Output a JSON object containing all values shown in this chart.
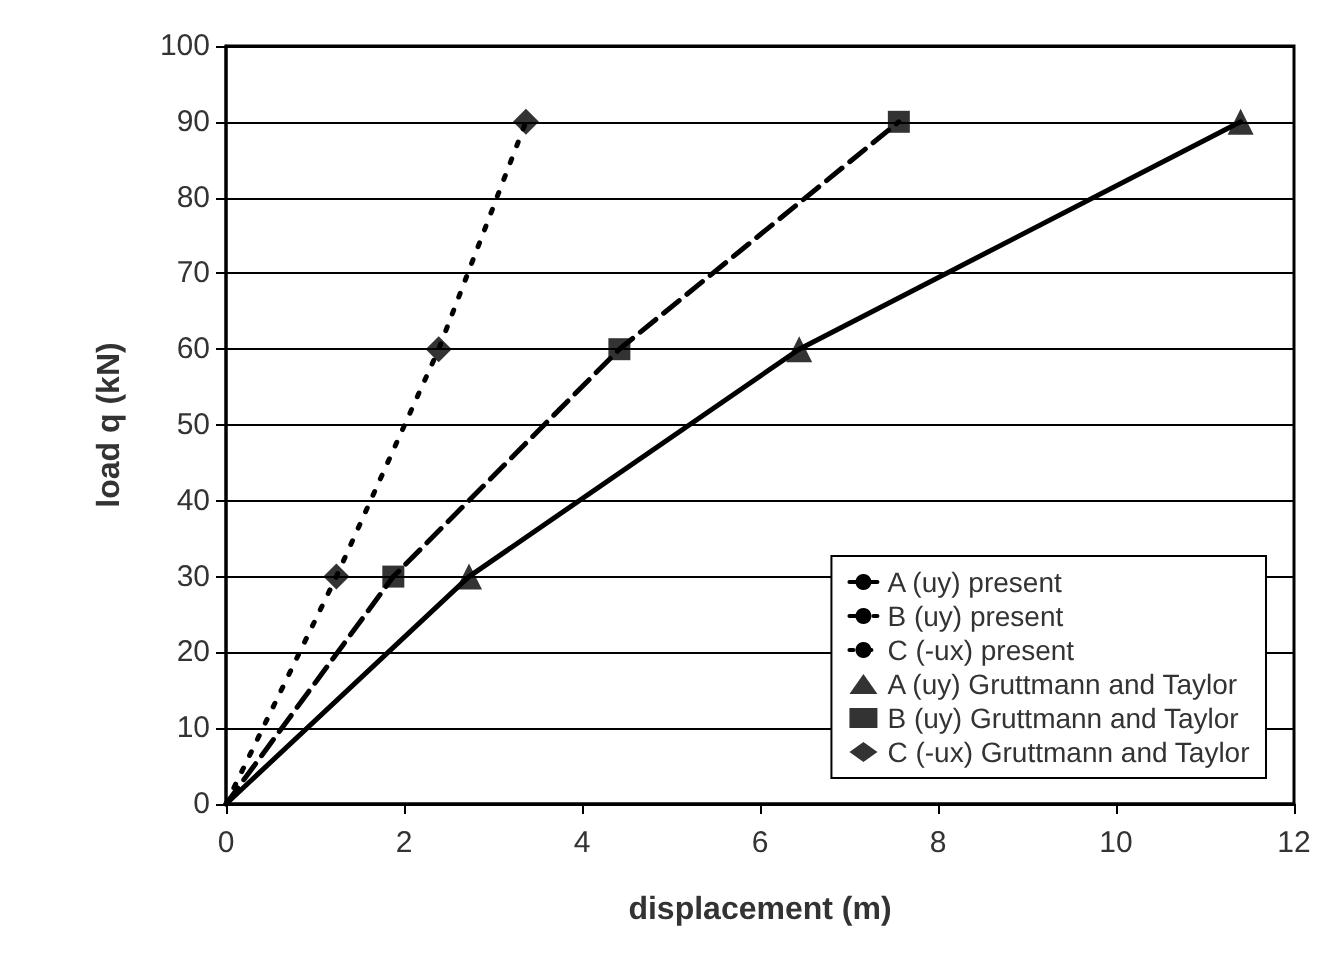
{
  "chart_data": {
    "type": "line",
    "xlabel": "displacement (m)",
    "ylabel": "load q (kN)",
    "series": [
      {
        "name": "A (uy) present",
        "color": "#000000",
        "line_style": "solid",
        "marker": "none",
        "x": [
          0,
          2.73,
          6.44,
          11.4
        ],
        "values": [
          0,
          30,
          60,
          90
        ]
      },
      {
        "name": "B (uy) present",
        "color": "#000000",
        "line_style": "dashed",
        "marker": "none",
        "x": [
          0,
          1.88,
          4.42,
          7.56
        ],
        "values": [
          0,
          30,
          60,
          90
        ]
      },
      {
        "name": "C (-ux) present",
        "color": "#000000",
        "line_style": "dotted",
        "marker": "none",
        "x": [
          0,
          1.24,
          2.39,
          3.37
        ],
        "values": [
          0,
          30,
          60,
          90
        ]
      },
      {
        "name": "A (uy) Gruttmann and Taylor",
        "type": "scatter",
        "color": "#000000",
        "marker": "triangle",
        "x": [
          2.73,
          6.44,
          11.4
        ],
        "values": [
          30,
          60,
          90
        ]
      },
      {
        "name": "B (uy) Gruttmann and Taylor",
        "type": "scatter",
        "color": "#000000",
        "marker": "square",
        "x": [
          1.88,
          4.42,
          7.56
        ],
        "values": [
          30,
          60,
          90
        ]
      },
      {
        "name": "C (-ux) Gruttmann and Taylor",
        "type": "scatter",
        "color": "#000000",
        "marker": "diamond",
        "x": [
          1.24,
          2.39,
          3.37
        ],
        "values": [
          30,
          60,
          90
        ]
      }
    ],
    "xlim": [
      0,
      12
    ],
    "xticks": [
      0,
      2,
      4,
      6,
      8,
      10,
      12
    ],
    "ylim": [
      0,
      100
    ],
    "yticks": [
      0,
      10,
      20,
      30,
      40,
      50,
      60,
      70,
      80,
      90,
      100
    ],
    "grid": "y",
    "legend": "bottom right"
  }
}
